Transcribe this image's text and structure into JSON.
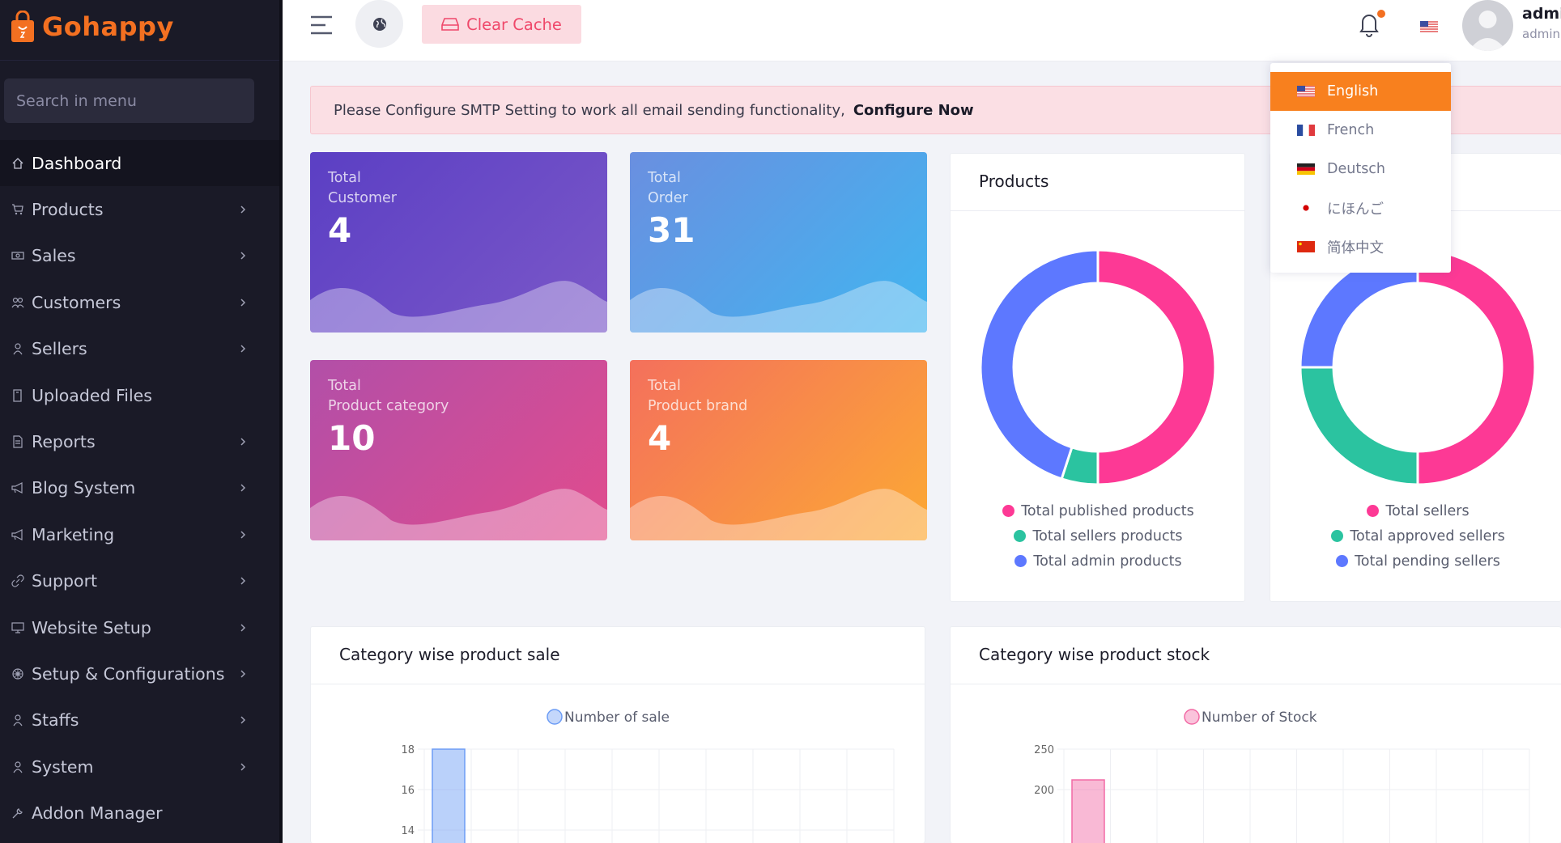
{
  "brand": {
    "name": "Gohappy",
    "accent": "#f37021"
  },
  "sidebar": {
    "search_placeholder": "Search in menu",
    "items": [
      {
        "label": "Dashboard",
        "icon": "home-icon",
        "has_children": false,
        "active": true
      },
      {
        "label": "Products",
        "icon": "cart-icon",
        "has_children": true
      },
      {
        "label": "Sales",
        "icon": "money-icon",
        "has_children": true
      },
      {
        "label": "Customers",
        "icon": "users-icon",
        "has_children": true
      },
      {
        "label": "Sellers",
        "icon": "user-icon",
        "has_children": true
      },
      {
        "label": "Uploaded Files",
        "icon": "folder-icon",
        "has_children": false
      },
      {
        "label": "Reports",
        "icon": "file-icon",
        "has_children": true
      },
      {
        "label": "Blog System",
        "icon": "megaphone-icon",
        "has_children": true
      },
      {
        "label": "Marketing",
        "icon": "megaphone-icon",
        "has_children": true
      },
      {
        "label": "Support",
        "icon": "link-icon",
        "has_children": true
      },
      {
        "label": "Website Setup",
        "icon": "desktop-icon",
        "has_children": true
      },
      {
        "label": "Setup & Configurations",
        "icon": "dharmachakra-icon",
        "has_children": true
      },
      {
        "label": "Staffs",
        "icon": "user-icon",
        "has_children": true
      },
      {
        "label": "System",
        "icon": "user-icon",
        "has_children": true
      },
      {
        "label": "Addon Manager",
        "icon": "wrench-icon",
        "has_children": false
      }
    ]
  },
  "topbar": {
    "clear_cache_label": "Clear Cache",
    "user_name": "admin",
    "user_role": "admin"
  },
  "alert": {
    "message": "Please Configure SMTP Setting to work all email sending functionality,",
    "link": "Configure Now"
  },
  "stats": [
    {
      "label1": "Total",
      "label2": "Customer",
      "value": "4"
    },
    {
      "label1": "Total",
      "label2": "Order",
      "value": "31"
    },
    {
      "label1": "Total",
      "label2": "Product category",
      "value": "10"
    },
    {
      "label1": "Total",
      "label2": "Product brand",
      "value": "4"
    }
  ],
  "products_card": {
    "title": "Products",
    "legend": [
      "Total published products",
      "Total sellers products",
      "Total admin products"
    ]
  },
  "sellers_card": {
    "legend": [
      "Total sellers",
      "Total approved sellers",
      "Total pending sellers"
    ]
  },
  "sale_card": {
    "title": "Category wise product sale"
  },
  "stock_card": {
    "title": "Category wise product stock"
  },
  "language_menu": {
    "items": [
      {
        "label": "English",
        "flag": "us-flag-icon",
        "selected": true
      },
      {
        "label": "French",
        "flag": "fr-flag-icon",
        "selected": false
      },
      {
        "label": "Deutsch",
        "flag": "de-flag-icon",
        "selected": false
      },
      {
        "label": "にほんご",
        "flag": "jp-flag-icon",
        "selected": false
      },
      {
        "label": "简体中文",
        "flag": "cn-flag-icon",
        "selected": false
      }
    ]
  },
  "colors": {
    "pink": "#fd3995",
    "green": "#2bc3a0",
    "blue": "#5d78ff"
  },
  "chart_data": [
    {
      "type": "pie",
      "title": "Products",
      "categories": [
        "Total published products",
        "Total sellers products",
        "Total admin products"
      ],
      "values": [
        50,
        5,
        45
      ],
      "colors": [
        "#fd3995",
        "#2bc3a0",
        "#5d78ff"
      ]
    },
    {
      "type": "pie",
      "categories": [
        "Total sellers",
        "Total approved sellers",
        "Total pending sellers"
      ],
      "values": [
        50,
        25,
        25
      ],
      "colors": [
        "#fd3995",
        "#2bc3a0",
        "#5d78ff"
      ]
    },
    {
      "type": "bar",
      "title": "Category wise product sale",
      "series": [
        {
          "name": "Number of sale",
          "values": [
            18
          ]
        }
      ],
      "yticks": [
        "18",
        "16",
        "14"
      ],
      "ylim": [
        12,
        18
      ],
      "color": "#6c9cf5"
    },
    {
      "type": "bar",
      "title": "Category wise product stock",
      "series": [
        {
          "name": "Number of Stock",
          "values": [
            212
          ]
        }
      ],
      "yticks": [
        "250",
        "200"
      ],
      "ylim": [
        150,
        250
      ],
      "color": "#f26aa5"
    }
  ]
}
